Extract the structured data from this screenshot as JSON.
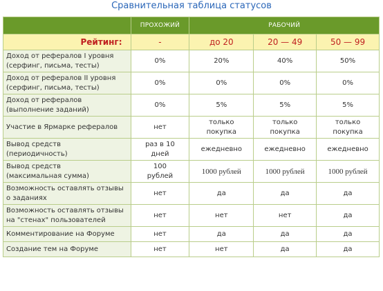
{
  "title": "Сравнительная таблица статусов",
  "headers": {
    "col1": "",
    "col2": "ПРОХОЖИЙ",
    "col3": "РАБОЧИЙ"
  },
  "rating": {
    "label": "Рейтинг:",
    "values": [
      "-",
      "до 20",
      "20 — 49",
      "50 — 99"
    ]
  },
  "rows": [
    {
      "label": [
        "Доход от рефералов I уровня",
        "(серфинг, письма, тесты)"
      ],
      "values": [
        [
          "0%"
        ],
        [
          "20%"
        ],
        [
          "40%"
        ],
        [
          "50%"
        ]
      ]
    },
    {
      "label": [
        "Доход от рефералов II уровня",
        "(серфинг, письма, тесты)"
      ],
      "values": [
        [
          "0%"
        ],
        [
          "0%"
        ],
        [
          "0%"
        ],
        [
          "0%"
        ]
      ]
    },
    {
      "label": [
        "Доход от рефералов",
        "(выполнение заданий)"
      ],
      "values": [
        [
          "0%"
        ],
        [
          "5%"
        ],
        [
          "5%"
        ],
        [
          "5%"
        ]
      ]
    },
    {
      "label": [
        "Участие в Ярмарке рефералов"
      ],
      "values": [
        [
          "нет"
        ],
        [
          "только",
          "покупка"
        ],
        [
          "только",
          "покупка"
        ],
        [
          "только",
          "покупка"
        ]
      ]
    },
    {
      "label": [
        "Вывод средств",
        "(периодичность)"
      ],
      "values": [
        [
          "раз в 10",
          "дней"
        ],
        [
          "ежедневно"
        ],
        [
          "ежедневно"
        ],
        [
          "ежедневно"
        ]
      ]
    },
    {
      "label": [
        "Вывод средств",
        "(максимальная сумма)"
      ],
      "values": [
        [
          "100",
          "рублей"
        ],
        [
          "1000 рублей"
        ],
        [
          "1000 рублей"
        ],
        [
          "1000 рублей"
        ]
      ]
    },
    {
      "label": [
        "Возможность оставлять отзывы",
        "о заданиях"
      ],
      "values": [
        [
          "нет"
        ],
        [
          "да"
        ],
        [
          "да"
        ],
        [
          "да"
        ]
      ]
    },
    {
      "label": [
        "Возможность оставлять отзывы",
        "на \"стенах\" пользователей"
      ],
      "values": [
        [
          "нет"
        ],
        [
          "нет"
        ],
        [
          "нет"
        ],
        [
          "да"
        ]
      ]
    },
    {
      "label": [
        "Комментирование на Форуме"
      ],
      "values": [
        [
          "нет"
        ],
        [
          "да"
        ],
        [
          "да"
        ],
        [
          "да"
        ]
      ]
    },
    {
      "label": [
        "Создание тем на Форуме"
      ],
      "values": [
        [
          "нет"
        ],
        [
          "нет"
        ],
        [
          "да"
        ],
        [
          "да"
        ]
      ]
    }
  ]
}
